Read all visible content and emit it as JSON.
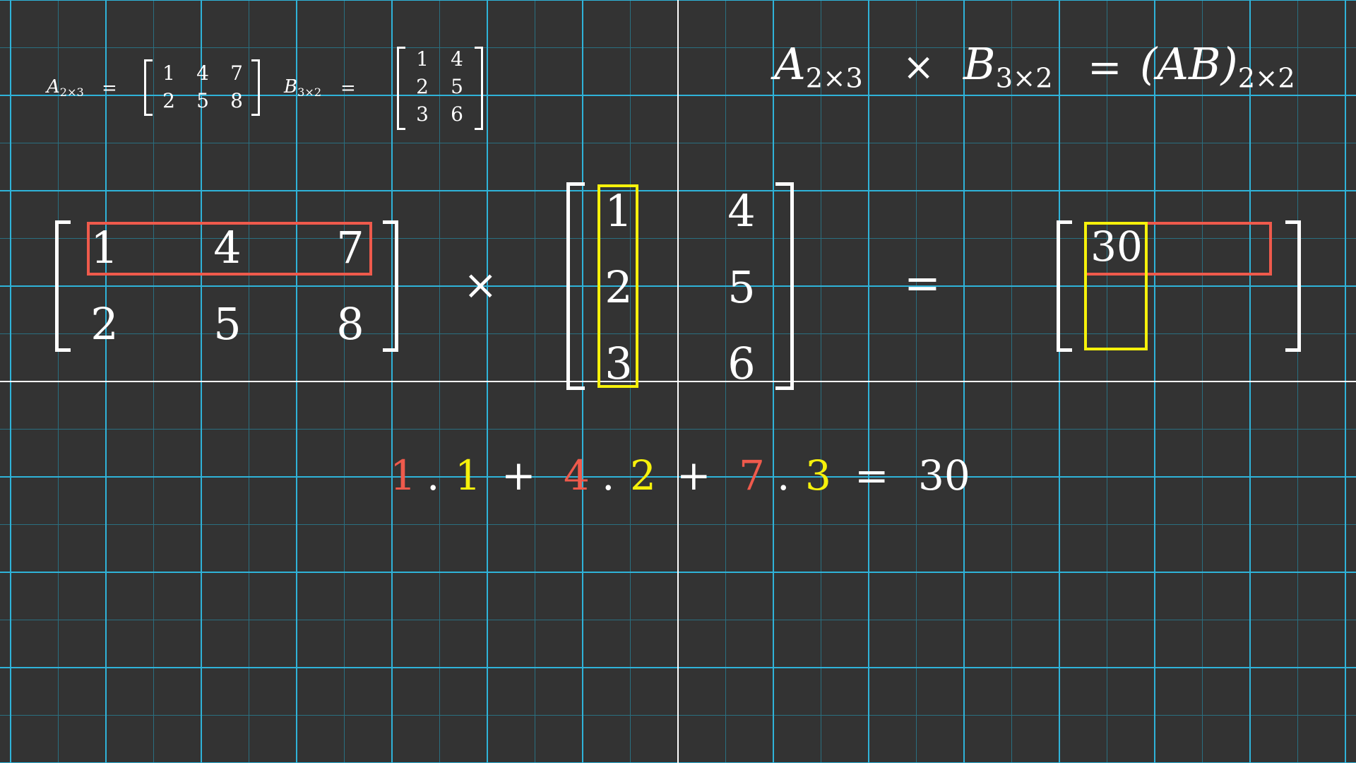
{
  "small_formula": {
    "a_label": "A",
    "a_sub": "2×3",
    "b_label": "B",
    "b_sub": "3×2",
    "equals": "=",
    "matrix_a": [
      [
        "1",
        "4",
        "7"
      ],
      [
        "2",
        "5",
        "8"
      ]
    ],
    "matrix_b": [
      [
        "1",
        "4"
      ],
      [
        "2",
        "5"
      ],
      [
        "3",
        "6"
      ]
    ]
  },
  "dimension_rule": {
    "a": "A",
    "a_sub": "2×3",
    "times": "×",
    "b": "B",
    "b_sub": "3×2",
    "equals": "=",
    "result": "(AB)",
    "result_sub": "2×2"
  },
  "main": {
    "matrix_a": [
      [
        "1",
        "4",
        "7"
      ],
      [
        "2",
        "5",
        "8"
      ]
    ],
    "times": "×",
    "matrix_b": [
      [
        "1",
        "4"
      ],
      [
        "2",
        "5"
      ],
      [
        "3",
        "6"
      ]
    ],
    "equals": "=",
    "result": [
      [
        "30",
        ""
      ],
      [
        "",
        ""
      ]
    ]
  },
  "calculation": {
    "terms": [
      {
        "a": "1",
        "dot": ".",
        "b": "1"
      },
      {
        "a": "4",
        "dot": ".",
        "b": "2"
      },
      {
        "a": "7",
        "dot": ".",
        "b": "3"
      }
    ],
    "plus": "+",
    "equals": "=",
    "result": "30"
  },
  "colors": {
    "background": "#333333",
    "grid_major": "#2fb3d9",
    "grid_minor": "#2a6f80",
    "axis": "#ffffff",
    "row_highlight": "#ef5a4c",
    "column_highlight": "#f6f10b"
  }
}
